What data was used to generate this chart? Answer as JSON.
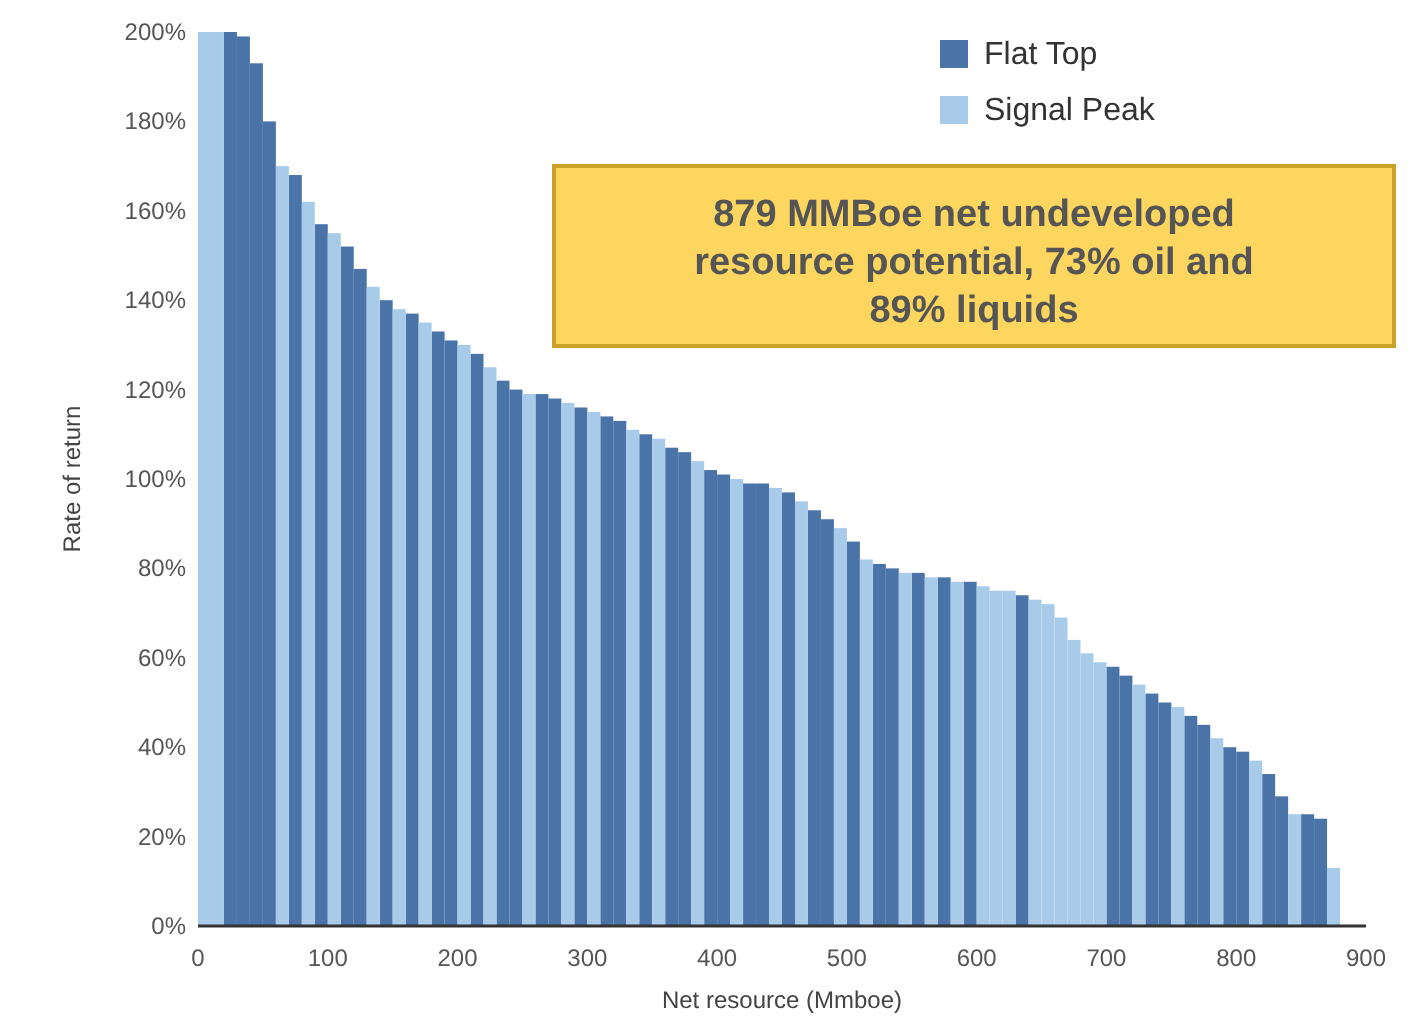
{
  "chart_data": {
    "type": "bar",
    "xlabel": "Net resource (Mmboe)",
    "ylabel": "Rate of return",
    "xlim": [
      0,
      900
    ],
    "xticks": [
      0,
      100,
      200,
      300,
      400,
      500,
      600,
      700,
      800,
      900
    ],
    "ylim": [
      0,
      200
    ],
    "yticks": [
      {
        "value": 0,
        "label": "0%"
      },
      {
        "value": 20,
        "label": "20%"
      },
      {
        "value": 40,
        "label": "40%"
      },
      {
        "value": 60,
        "label": "60%"
      },
      {
        "value": 80,
        "label": "80%"
      },
      {
        "value": 100,
        "label": "100%"
      },
      {
        "value": 120,
        "label": "120%"
      },
      {
        "value": 140,
        "label": "140%"
      },
      {
        "value": 160,
        "label": "160%"
      },
      {
        "value": 180,
        "label": "180%"
      },
      {
        "value": 200,
        "label": "200%"
      }
    ],
    "legend": "top right",
    "grid": false,
    "annotations": [
      "879 MMBoe net undeveloped resource potential, 73% oil and 89% liquids"
    ],
    "series": [
      {
        "name": "Flat Top",
        "color": "#4a74a8",
        "x": [
          25,
          35,
          45,
          55,
          75,
          95,
          115,
          125,
          145,
          165,
          185,
          195,
          215,
          235,
          245,
          265,
          275,
          295,
          315,
          325,
          345,
          365,
          375,
          395,
          405,
          425,
          435,
          455,
          475,
          485,
          505,
          525,
          535,
          555,
          575,
          595,
          635,
          705,
          715,
          735,
          745,
          765,
          775,
          795,
          805,
          825,
          835,
          855,
          865
        ],
        "values": [
          200,
          199,
          193,
          180,
          168,
          157,
          152,
          147,
          140,
          137,
          133,
          131,
          128,
          122,
          120,
          119,
          118,
          116,
          114,
          113,
          110,
          107,
          106,
          102,
          101,
          99,
          99,
          97,
          93,
          91,
          86,
          81,
          80,
          79,
          78,
          77,
          74,
          58,
          56,
          52,
          50,
          47,
          45,
          40,
          39,
          34,
          29,
          25,
          24
        ]
      },
      {
        "name": "Signal Peak",
        "color": "#a8cbea",
        "x": [
          5,
          15,
          65,
          85,
          105,
          135,
          155,
          175,
          205,
          225,
          255,
          285,
          305,
          335,
          355,
          385,
          415,
          445,
          465,
          495,
          515,
          545,
          565,
          585,
          605,
          615,
          625,
          645,
          655,
          665,
          675,
          685,
          695,
          725,
          755,
          785,
          815,
          845,
          875
        ],
        "values": [
          200,
          200,
          170,
          162,
          155,
          143,
          138,
          135,
          130,
          125,
          119,
          117,
          115,
          111,
          109,
          104,
          100,
          98,
          95,
          89,
          82,
          79,
          78,
          77,
          76,
          75,
          75,
          73,
          72,
          69,
          64,
          61,
          59,
          54,
          49,
          42,
          37,
          25,
          13
        ]
      }
    ]
  }
}
